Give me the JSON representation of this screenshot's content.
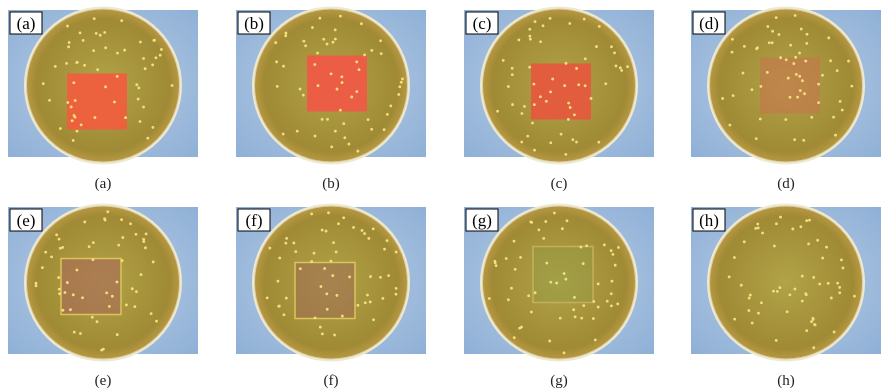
{
  "panels": [
    {
      "tag": "(a)",
      "caption": "(a)"
    },
    {
      "tag": "(b)",
      "caption": "(b)"
    },
    {
      "tag": "(c)",
      "caption": "(c)"
    },
    {
      "tag": "(d)",
      "caption": "(d)"
    },
    {
      "tag": "(e)",
      "caption": "(e)"
    },
    {
      "tag": "(f)",
      "caption": "(f)"
    },
    {
      "tag": "(g)",
      "caption": "(g)"
    },
    {
      "tag": "(h)",
      "caption": "(h)"
    }
  ]
}
